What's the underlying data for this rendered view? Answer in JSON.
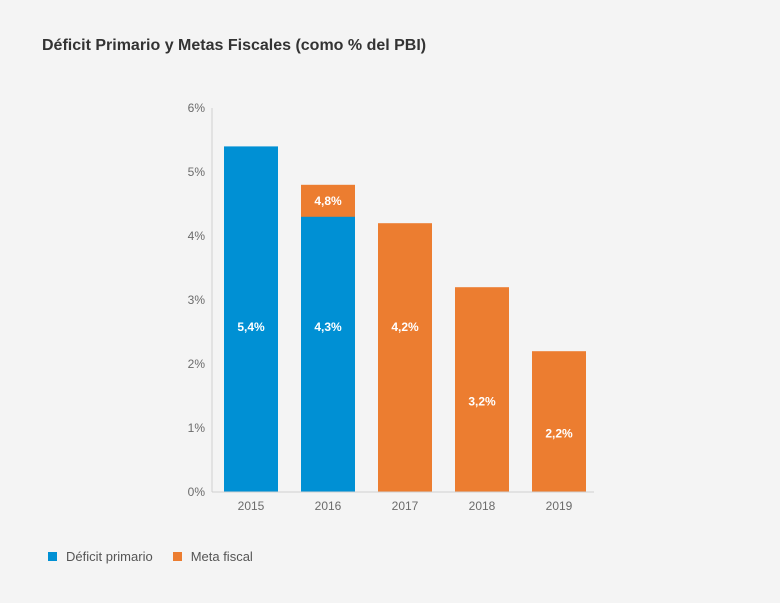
{
  "chart_data": {
    "type": "bar",
    "title": "Déficit Primario y Metas Fiscales (como % del PBI)",
    "xlabel": "",
    "ylabel": "",
    "ylim": [
      0,
      6
    ],
    "y_ticks": [
      "0%",
      "1%",
      "2%",
      "3%",
      "4%",
      "5%",
      "6%"
    ],
    "grid": false,
    "legend_position": "bottom-left",
    "categories": [
      "2015",
      "2016",
      "2017",
      "2018",
      "2019"
    ],
    "series": [
      {
        "name": "Déficit primario",
        "color": "#0090d4",
        "values": [
          5.4,
          4.3,
          null,
          null,
          null
        ],
        "labels": [
          "5,4%",
          "4,3%",
          "",
          "",
          ""
        ]
      },
      {
        "name": "Meta fiscal",
        "color": "#ec7d30",
        "values": [
          null,
          4.8,
          4.2,
          3.2,
          2.2
        ],
        "labels": [
          "",
          "4,8%",
          "4,2%",
          "3,2%",
          "2,2%"
        ]
      }
    ]
  }
}
